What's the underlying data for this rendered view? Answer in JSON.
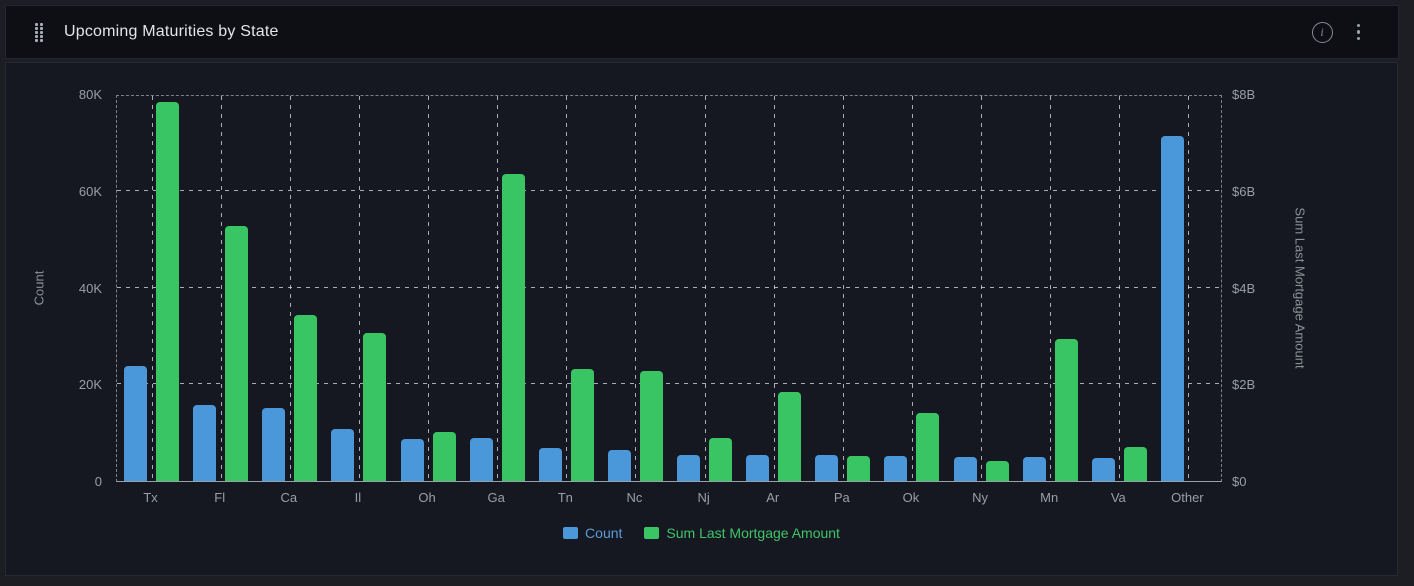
{
  "panel": {
    "title": "Upcoming Maturities by State",
    "header_icons": [
      "drag-handle-icon",
      "info-icon",
      "kebab-menu-icon"
    ],
    "info_glyph": "i"
  },
  "colors": {
    "count_series": "#4a97d9",
    "sum_series": "#3ac565",
    "count_legend_text": "#5b9bd8",
    "sum_legend_text": "#3fc468",
    "page_bg": "#1d1e24",
    "header_bg": "#0d0f14",
    "body_bg": "#151821",
    "grid": "#dbdfe5",
    "axis_text": "#9a9ea6"
  },
  "chart_data": {
    "type": "bar",
    "title": "Upcoming Maturities by State",
    "categories": [
      "Tx",
      "Fl",
      "Ca",
      "Il",
      "Oh",
      "Ga",
      "Tn",
      "Nc",
      "Nj",
      "Ar",
      "Pa",
      "Ok",
      "Ny",
      "Mn",
      "Va",
      "Other"
    ],
    "series": [
      {
        "name": "Count",
        "axis": "left",
        "color": "#4a97d9",
        "values": [
          23800,
          15700,
          15200,
          10700,
          8700,
          8900,
          6800,
          6500,
          5400,
          5400,
          5300,
          5200,
          4900,
          4900,
          4700,
          71400
        ]
      },
      {
        "name": "Sum Last Mortgage Amount",
        "axis": "right",
        "color": "#3ac565",
        "values_billions": [
          7.83,
          5.27,
          3.43,
          3.07,
          1.02,
          6.35,
          2.32,
          2.28,
          0.89,
          1.84,
          0.51,
          1.4,
          0.42,
          2.93,
          0.71,
          0
        ]
      }
    ],
    "left_axis": {
      "label": "Count",
      "min": 0,
      "max": 80000,
      "ticks": [
        "0",
        "20K",
        "40K",
        "60K",
        "80K"
      ]
    },
    "right_axis": {
      "label": "Sum Last Mortgage Amount",
      "min": 0,
      "max": 8,
      "ticks": [
        "$0",
        "$2B",
        "$4B",
        "$6B",
        "$8B"
      ]
    },
    "legend": {
      "position": "bottom",
      "items": [
        "Count",
        "Sum Last Mortgage Amount"
      ]
    },
    "grid": true
  }
}
